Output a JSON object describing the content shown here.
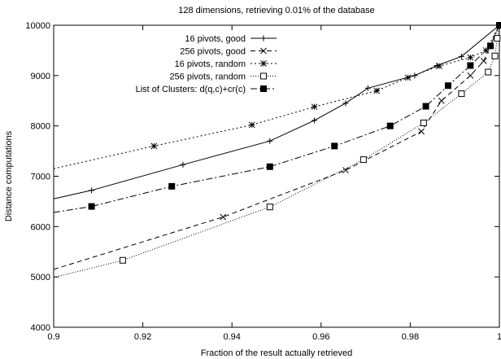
{
  "chart_data": {
    "type": "line",
    "title": "128 dimensions, retrieving 0.01% of the database",
    "xlabel": "Fraction of the result actually retrieved",
    "ylabel": "Distance computations",
    "xlim": [
      0.9,
      1.0
    ],
    "ylim": [
      4000,
      10000
    ],
    "xticks": [
      0.9,
      0.92,
      0.94,
      0.96,
      0.98,
      1
    ],
    "xtick_labels": [
      "0.9",
      "0.92",
      "0.94",
      "0.96",
      "0.98",
      "1"
    ],
    "yticks": [
      4000,
      5000,
      6000,
      7000,
      8000,
      9000,
      10000
    ],
    "ytick_labels": [
      "4000",
      "5000",
      "6000",
      "7000",
      "8000",
      "9000",
      "10000"
    ],
    "grid": false,
    "legend_position": "top-center",
    "series": [
      {
        "name": "16 pivots, good",
        "marker": "plus",
        "dash": "",
        "x": [
          0.9,
          0.9085,
          0.929,
          0.9485,
          0.9585,
          0.9655,
          0.9705,
          0.981,
          0.986,
          0.9915,
          1.0
        ],
        "y": [
          6550,
          6720,
          7230,
          7700,
          8110,
          8450,
          8750,
          9000,
          9200,
          9380,
          10000
        ]
      },
      {
        "name": "256 pivots, good",
        "marker": "cross",
        "dash": "6,4",
        "x": [
          0.9,
          0.938,
          0.9655,
          0.9825,
          0.987,
          0.9935,
          0.9965,
          1.0
        ],
        "y": [
          5150,
          6190,
          7120,
          7890,
          8500,
          9000,
          9290,
          10000
        ]
      },
      {
        "name": "16 pivots, random",
        "marker": "star",
        "dash": "2,3",
        "x": [
          0.9,
          0.9225,
          0.9445,
          0.9585,
          0.9725,
          0.9795,
          0.9865,
          0.9935,
          0.997,
          1.0
        ],
        "y": [
          7150,
          7600,
          8020,
          8380,
          8700,
          8960,
          9190,
          9360,
          9500,
          10000
        ]
      },
      {
        "name": "256 pivots, random",
        "marker": "square-open",
        "dash": "1,2",
        "x": [
          0.9,
          0.9155,
          0.9485,
          0.9695,
          0.983,
          0.9915,
          0.9975,
          0.999,
          0.9995,
          1.0
        ],
        "y": [
          4990,
          5330,
          6390,
          7330,
          8060,
          8640,
          9070,
          9390,
          9740,
          10000
        ]
      },
      {
        "name": "List of Clusters: d(q,c)+cr(c)",
        "marker": "square-filled",
        "dash": "8,3,2,3",
        "x": [
          0.9,
          0.9085,
          0.9265,
          0.9485,
          0.963,
          0.9755,
          0.9835,
          0.9885,
          0.9935,
          0.998,
          1.0
        ],
        "y": [
          6280,
          6400,
          6800,
          7190,
          7600,
          8000,
          8390,
          8800,
          9200,
          9590,
          10000
        ]
      }
    ]
  }
}
